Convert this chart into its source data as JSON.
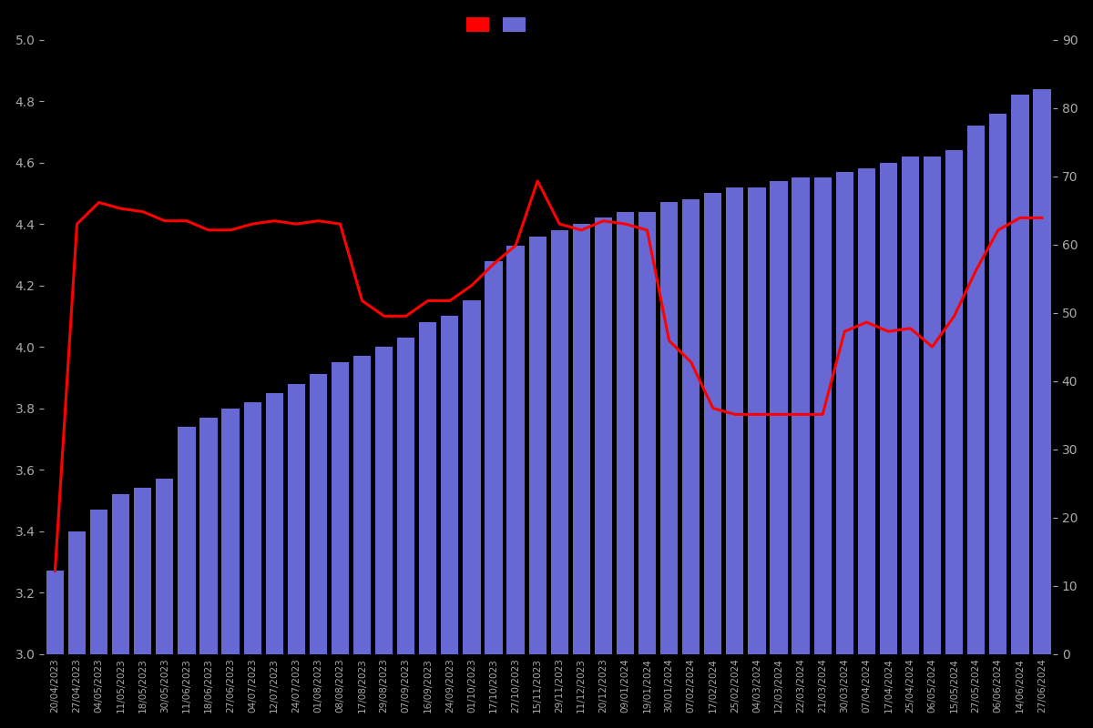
{
  "dates": [
    "20/04/2023",
    "27/04/2023",
    "04/05/2023",
    "11/05/2023",
    "18/05/2023",
    "30/05/2023",
    "11/06/2023",
    "18/06/2023",
    "27/06/2023",
    "04/07/2023",
    "12/07/2023",
    "24/07/2023",
    "01/08/2023",
    "08/08/2023",
    "17/08/2023",
    "29/08/2023",
    "07/09/2023",
    "16/09/2023",
    "24/09/2023",
    "01/10/2023",
    "17/10/2023",
    "27/10/2023",
    "15/11/2023",
    "29/11/2023",
    "11/12/2023",
    "20/12/2023",
    "09/01/2024",
    "19/01/2024",
    "30/01/2024",
    "07/02/2024",
    "17/02/2024",
    "25/02/2024",
    "04/03/2024",
    "12/03/2024",
    "22/03/2024",
    "21/03/2024",
    "30/03/2024",
    "07/04/2024",
    "17/04/2024",
    "25/04/2024",
    "06/05/2024",
    "15/05/2024",
    "27/05/2024",
    "06/06/2024",
    "14/06/2024",
    "27/06/2024"
  ],
  "bar_values": [
    3.27,
    3.4,
    3.47,
    3.52,
    3.54,
    3.57,
    3.74,
    3.77,
    3.8,
    3.82,
    3.85,
    3.88,
    3.91,
    3.95,
    3.97,
    4.0,
    4.03,
    4.08,
    4.1,
    4.15,
    4.28,
    4.33,
    4.36,
    4.38,
    4.4,
    4.42,
    4.44,
    4.44,
    4.47,
    4.48,
    4.5,
    4.52,
    4.52,
    4.54,
    4.55,
    4.55,
    4.57,
    4.58,
    4.6,
    4.62,
    4.62,
    4.64,
    4.72,
    4.76,
    4.82,
    4.84
  ],
  "line_values": [
    3.27,
    4.4,
    4.47,
    4.45,
    4.44,
    4.41,
    4.41,
    4.38,
    4.38,
    4.4,
    4.41,
    4.4,
    4.41,
    4.4,
    4.15,
    4.1,
    4.1,
    4.15,
    4.15,
    4.2,
    4.27,
    4.33,
    4.54,
    4.4,
    4.38,
    4.41,
    4.4,
    4.38,
    4.02,
    3.95,
    3.8,
    3.78,
    3.78,
    3.78,
    3.78,
    3.78,
    4.05,
    4.08,
    4.05,
    4.06,
    4.0,
    4.1,
    4.25,
    4.38,
    4.42,
    4.42
  ],
  "bar_color": "#6868d4",
  "line_color": "#ff0000",
  "background_color": "#000000",
  "text_color": "#aaaaaa",
  "yleft_min": 3.0,
  "yleft_max": 5.0,
  "yright_min": 0,
  "yright_max": 90,
  "legend_colors": [
    "#ff0000",
    "#6868d4"
  ]
}
